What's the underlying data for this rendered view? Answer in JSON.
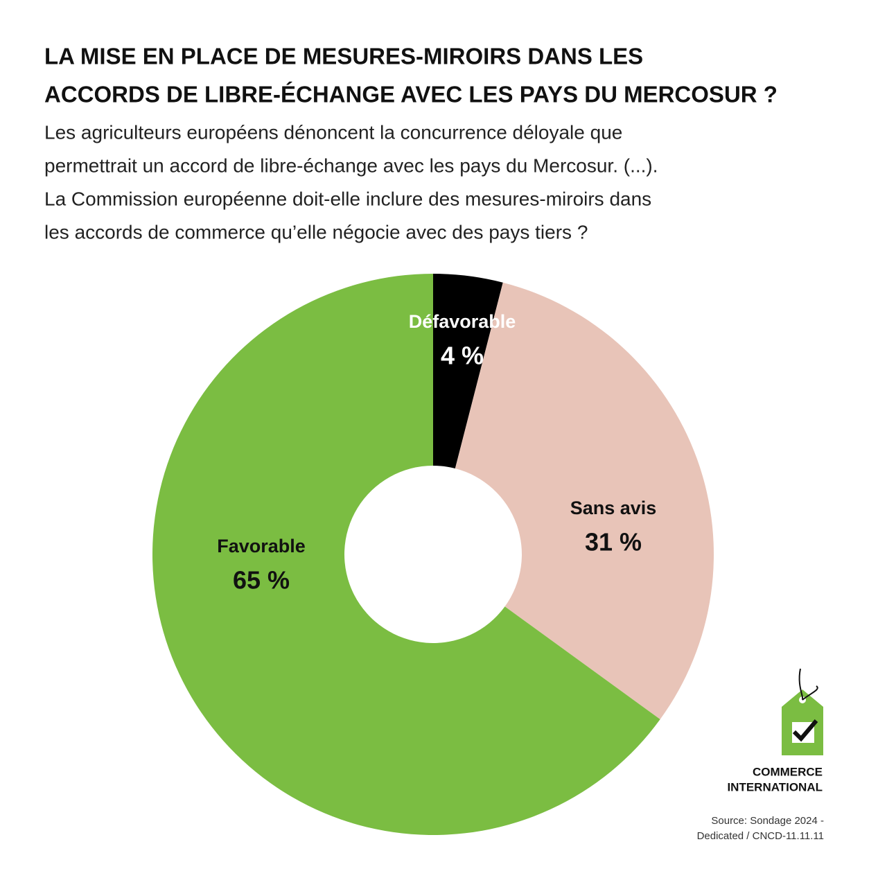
{
  "chart_data": {
    "type": "donut",
    "title": [
      "LA MISE EN PLACE DE MESURES-MIROIRS DANS LES",
      "ACCORDS DE LIBRE-ÉCHANGE AVEC LES PAYS DU MERCOSUR ?"
    ],
    "subtitle": [
      "Les agriculteurs européens dénoncent la concurrence déloyale que",
      "permettrait un accord de libre-échange avec les pays du Mercosur. (...).",
      "La Commission européenne doit-elle inclure des mesures-miroirs dans",
      "les accords de commerce qu’elle négocie avec des pays tiers ?"
    ],
    "categories": [
      "Défavorable",
      "Sans avis",
      "Favorable"
    ],
    "values": [
      4,
      31,
      65
    ],
    "value_labels": [
      "4 %",
      "31 %",
      "65 %"
    ],
    "colors": [
      "#000000",
      "#e8c4b8",
      "#7bbd42"
    ],
    "label_colors": [
      "#ffffff",
      "#111111",
      "#111111"
    ],
    "logo": [
      "COMMERCE",
      "INTERNATIONAL"
    ],
    "source": [
      "Source: Sondage 2024 -",
      "Dedicated /  CNCD-11.11.11"
    ]
  }
}
